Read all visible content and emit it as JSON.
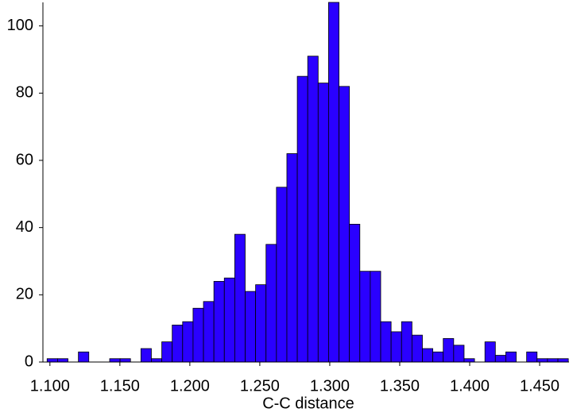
{
  "chart_data": {
    "type": "histogram",
    "x_label": "C-C distance",
    "bins": [
      1.098,
      1.10545,
      1.1129,
      1.12035,
      1.1278,
      1.13525,
      1.1427,
      1.15015,
      1.1576,
      1.16505,
      1.1725,
      1.17995,
      1.1874,
      1.19485,
      1.2023,
      1.20975,
      1.2172,
      1.22465,
      1.2321,
      1.23955,
      1.247,
      1.25445,
      1.2619,
      1.26935,
      1.2768,
      1.28425,
      1.2917,
      1.29915,
      1.3066,
      1.31405,
      1.3215,
      1.32895,
      1.3364,
      1.34385,
      1.3513,
      1.35875,
      1.3662,
      1.37365,
      1.3811,
      1.38855,
      1.396,
      1.40345,
      1.4109,
      1.41835,
      1.4258,
      1.43325,
      1.4407,
      1.44815,
      1.4556,
      1.46305,
      1.4705
    ],
    "counts": [
      1,
      1,
      0,
      3,
      0,
      0,
      1,
      1,
      0,
      4,
      1,
      6,
      11,
      12,
      16,
      18,
      24,
      25,
      38,
      21,
      23,
      35,
      52,
      62,
      85,
      91,
      83,
      107,
      82,
      41,
      27,
      27,
      12,
      9,
      12,
      8,
      4,
      3,
      7,
      5,
      1,
      0,
      6,
      2,
      3,
      0,
      3,
      1,
      1,
      1
    ],
    "color": "#2a00ff",
    "xlim": [
      1.095,
      1.471
    ],
    "xticks": [
      {
        "value": 1.1,
        "label": "1.100"
      },
      {
        "value": 1.15,
        "label": "1.150"
      },
      {
        "value": 1.2,
        "label": "1.200"
      },
      {
        "value": 1.25,
        "label": "1.250"
      },
      {
        "value": 1.3,
        "label": "1.300"
      },
      {
        "value": 1.35,
        "label": "1.350"
      },
      {
        "value": 1.4,
        "label": "1.400"
      },
      {
        "value": 1.45,
        "label": "1.450"
      }
    ],
    "ylim": [
      0,
      107
    ],
    "yticks": [
      0,
      20,
      40,
      60,
      80,
      100
    ]
  }
}
